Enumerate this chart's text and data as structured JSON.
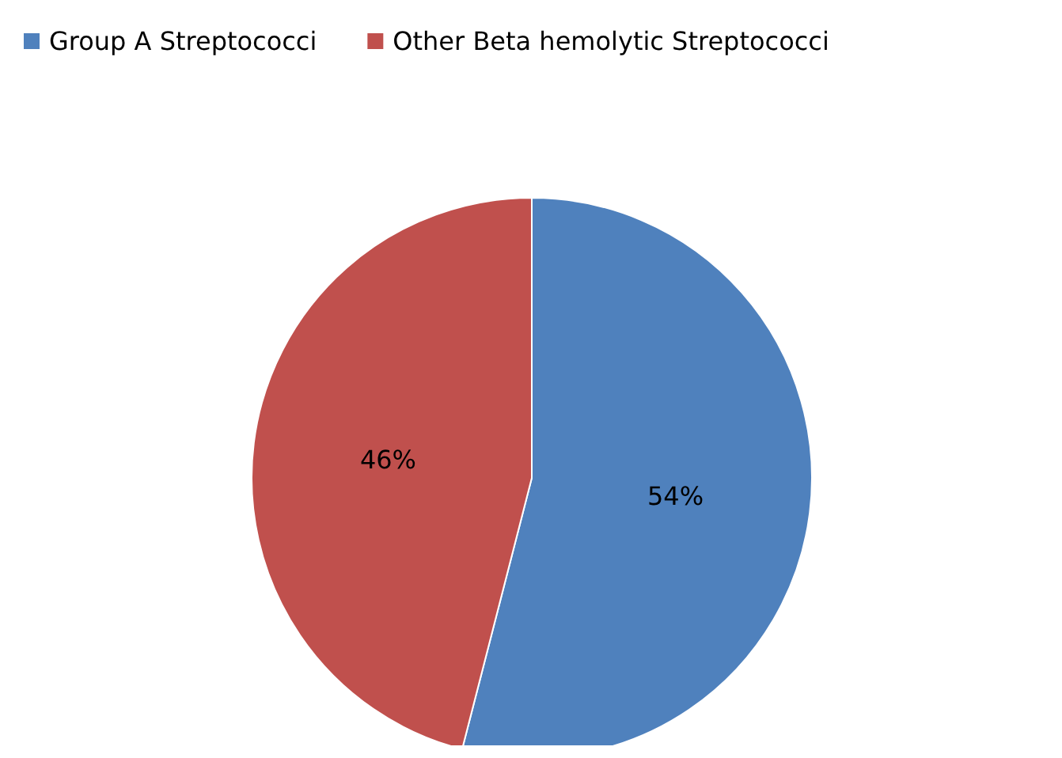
{
  "chart_data": {
    "type": "pie",
    "categories": [
      "Group A Streptococci",
      "Other Beta hemolytic Streptococci"
    ],
    "values": [
      54,
      46
    ],
    "colors": [
      "#4f81bd",
      "#c0504d"
    ],
    "value_labels": [
      "54%",
      "46%"
    ],
    "legend": "top left"
  }
}
